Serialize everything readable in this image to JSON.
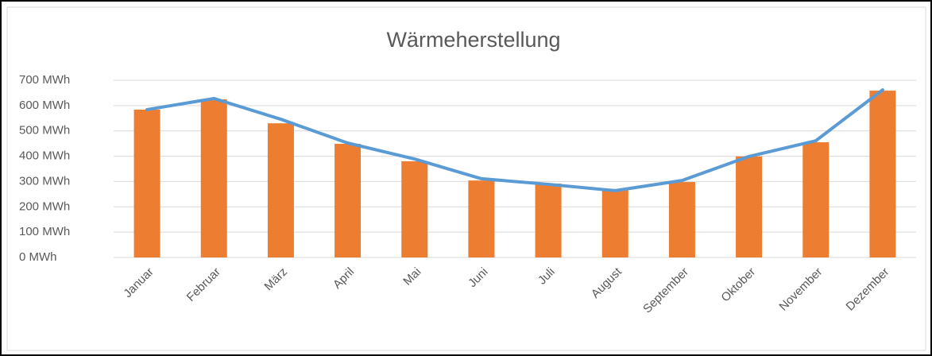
{
  "chart_data": {
    "type": "bar-line",
    "title": "Wärmeherstellung",
    "categories": [
      "Januar",
      "Februar",
      "März",
      "April",
      "Mai",
      "Juni",
      "Juli",
      "August",
      "September",
      "Oktober",
      "November",
      "Dezember"
    ],
    "series": [
      {
        "type": "bar",
        "color": "#ed7d31",
        "values": [
          584,
          625,
          530,
          449,
          380,
          304,
          292,
          267,
          298,
          399,
          455,
          659
        ]
      },
      {
        "type": "line",
        "color": "#5b9bd5",
        "values": [
          584,
          628,
          546,
          452,
          389,
          311,
          289,
          264,
          304,
          399,
          461,
          662
        ]
      }
    ],
    "ylim": [
      0,
      700
    ],
    "yticks": [
      {
        "value": 0,
        "label": "0 MWh"
      },
      {
        "value": 100,
        "label": "100 MWh"
      },
      {
        "value": 200,
        "label": "200 MWh"
      },
      {
        "value": 300,
        "label": "300 MWh"
      },
      {
        "value": 400,
        "label": "400 MWh"
      },
      {
        "value": 500,
        "label": "500 MWh"
      },
      {
        "value": 600,
        "label": "600 MWh"
      },
      {
        "value": 700,
        "label": "700 MWh"
      }
    ],
    "grid": true
  }
}
